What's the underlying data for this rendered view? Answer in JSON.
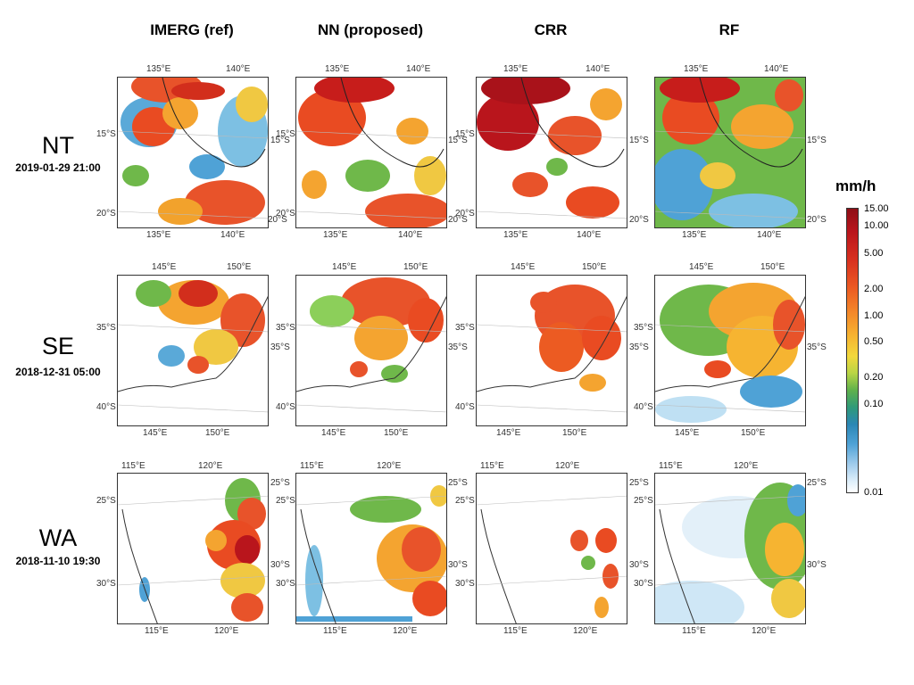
{
  "columns": [
    "IMERG (ref)",
    "NN (proposed)",
    "CRR",
    "RF"
  ],
  "rows": [
    {
      "region": "NT",
      "date": "2019-01-29 21:00",
      "lon_ticks": [
        "135°E",
        "140°E"
      ],
      "lat_ticks": [
        "15°S",
        "20°S"
      ]
    },
    {
      "region": "SE",
      "date": "2018-12-31 05:00",
      "lon_ticks": [
        "145°E",
        "150°E"
      ],
      "lat_ticks": [
        "35°S",
        "40°S"
      ]
    },
    {
      "region": "WA",
      "date": "2018-11-10 19:30",
      "lon_ticks": [
        "115°E",
        "120°E"
      ],
      "lat_ticks": [
        "25°S",
        "30°S"
      ]
    }
  ],
  "colorbar": {
    "title": "mm/h",
    "labels": [
      "15.00",
      "10.00",
      "5.00",
      "2.00",
      "1.00",
      "0.50",
      "0.20",
      "0.10",
      "0.01"
    ]
  }
}
